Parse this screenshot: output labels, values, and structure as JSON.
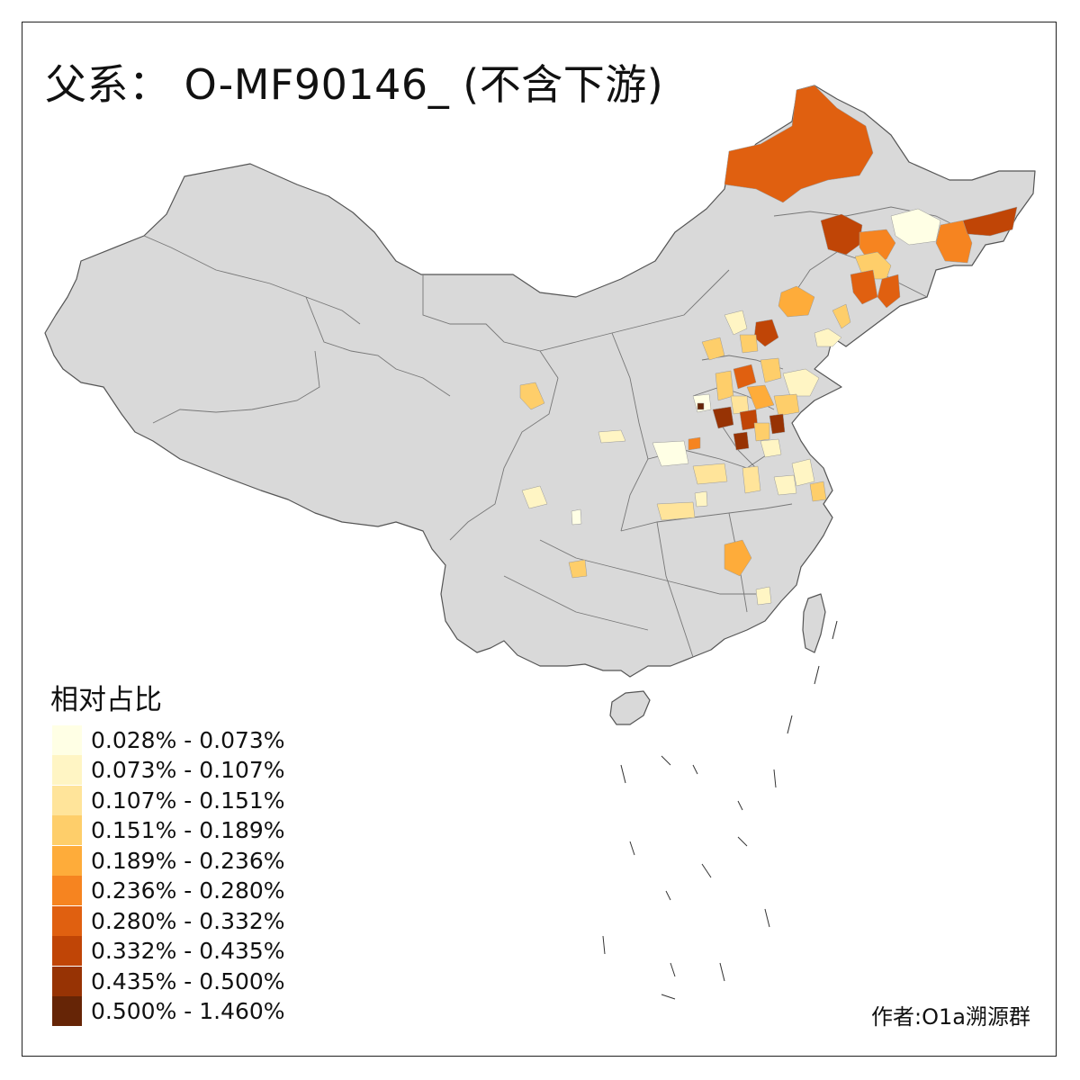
{
  "map": {
    "title": "父系： O-MF90146_ (不含下游)",
    "legend_title": "相对占比",
    "credit": "作者:O1a溯源群",
    "base_color": "#d9d9d9",
    "border_color": "#6e6e6e",
    "legend": [
      {
        "label": "0.028% - 0.073%",
        "color": "#ffffe5"
      },
      {
        "label": "0.073% - 0.107%",
        "color": "#fff5c4"
      },
      {
        "label": "0.107% - 0.151%",
        "color": "#ffe49a"
      },
      {
        "label": "0.151% - 0.189%",
        "color": "#fece6a"
      },
      {
        "label": "0.189% - 0.236%",
        "color": "#feac3a"
      },
      {
        "label": "0.236% - 0.280%",
        "color": "#f68420"
      },
      {
        "label": "0.280% - 0.332%",
        "color": "#e06010"
      },
      {
        "label": "0.332% - 0.435%",
        "color": "#c04506"
      },
      {
        "label": "0.435% - 0.500%",
        "color": "#973304"
      },
      {
        "label": "0.500% - 1.460%",
        "color": "#662506"
      }
    ]
  }
}
